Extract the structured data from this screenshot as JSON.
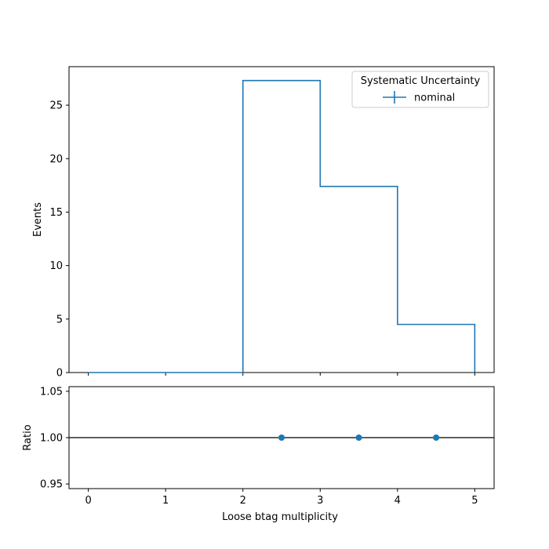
{
  "chart_data": [
    {
      "type": "histogram-step",
      "panel": "main",
      "xlabel": "",
      "ylabel": "Events",
      "xlim": [
        -0.25,
        5.25
      ],
      "ylim": [
        0,
        28.6
      ],
      "x_ticks": [
        0,
        1,
        2,
        3,
        4,
        5
      ],
      "y_ticks": [
        0,
        5,
        10,
        15,
        20,
        25
      ],
      "bin_edges": [
        0,
        1,
        2,
        3,
        4,
        5
      ],
      "series": [
        {
          "name": "nominal",
          "values": [
            0,
            0,
            27.3,
            17.4,
            4.5
          ],
          "color": "#1f77b4"
        }
      ],
      "legend": {
        "title": "Systematic Uncertainty",
        "entries": [
          "nominal"
        ],
        "placement": "top-right"
      }
    },
    {
      "type": "scatter",
      "panel": "ratio",
      "xlabel": "Loose btag multiplicity",
      "ylabel": "Ratio",
      "xlim": [
        -0.25,
        5.25
      ],
      "ylim": [
        0.945,
        1.055
      ],
      "x_ticks": [
        0,
        1,
        2,
        3,
        4,
        5
      ],
      "y_ticks": [
        "0.95",
        "1.00",
        "1.05"
      ],
      "reference_line": 1.0,
      "series": [
        {
          "name": "nominal",
          "x": [
            2.5,
            3.5,
            4.5
          ],
          "y": [
            1.0,
            1.0,
            1.0
          ],
          "color": "#1f77b4"
        }
      ]
    }
  ]
}
